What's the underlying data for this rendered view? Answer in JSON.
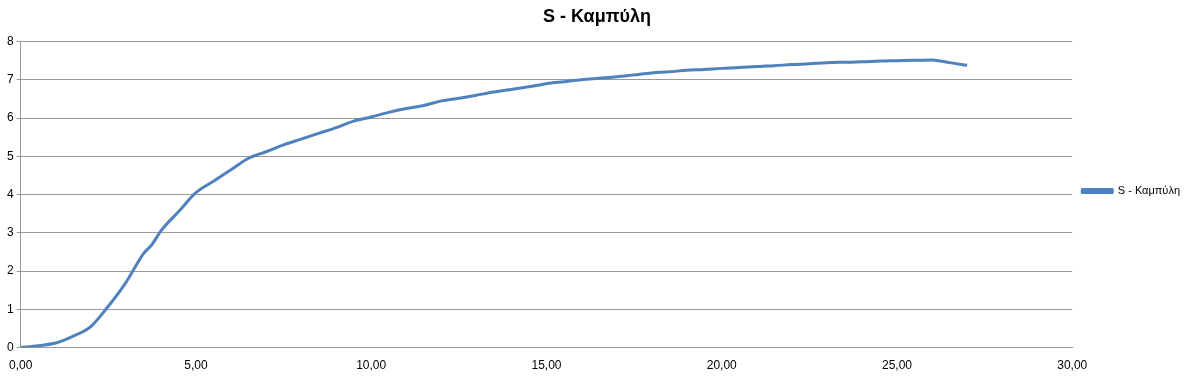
{
  "chart_data": {
    "type": "line",
    "title": "S - Καμπύλη",
    "x": [
      0,
      0.5,
      1,
      1.5,
      2,
      2.5,
      3,
      3.5,
      3.75,
      4,
      4.5,
      5,
      5.5,
      6,
      6.5,
      7,
      7.5,
      8,
      8.5,
      9,
      9.5,
      10,
      10.5,
      11,
      11.5,
      12,
      12.5,
      13,
      13.5,
      14,
      14.5,
      15,
      15.5,
      16,
      16.5,
      17,
      17.5,
      18,
      18.5,
      19,
      19.5,
      20,
      20.5,
      21,
      21.5,
      22,
      22.5,
      23,
      23.5,
      24,
      24.5,
      25,
      25.5,
      26,
      26.5,
      27
    ],
    "series": [
      {
        "name": "S - Καμπύλη",
        "color": "#4f81bd",
        "values": [
          0,
          0.05,
          0.12,
          0.3,
          0.55,
          1.08,
          1.7,
          2.45,
          2.7,
          3.05,
          3.55,
          4.05,
          4.35,
          4.65,
          4.95,
          5.12,
          5.3,
          5.45,
          5.6,
          5.75,
          5.92,
          6.03,
          6.15,
          6.25,
          6.33,
          6.45,
          6.52,
          6.6,
          6.68,
          6.75,
          6.82,
          6.9,
          6.95,
          7.0,
          7.04,
          7.08,
          7.13,
          7.18,
          7.21,
          7.25,
          7.27,
          7.3,
          7.32,
          7.35,
          7.37,
          7.4,
          7.42,
          7.45,
          7.46,
          7.47,
          7.49,
          7.5,
          7.51,
          7.52,
          7.45,
          7.38
        ]
      }
    ],
    "xlim": [
      0,
      30
    ],
    "xticks": [
      {
        "value": 0,
        "label": "0,00"
      },
      {
        "value": 5,
        "label": "5,00"
      },
      {
        "value": 10,
        "label": "10,00"
      },
      {
        "value": 15,
        "label": "15,00"
      },
      {
        "value": 20,
        "label": "20,00"
      },
      {
        "value": 25,
        "label": "25,00"
      },
      {
        "value": 30,
        "label": "30,00"
      }
    ],
    "ylim": [
      0,
      8
    ],
    "yticks": [
      0,
      1,
      2,
      3,
      4,
      5,
      6,
      7,
      8
    ],
    "grid": "y",
    "legend": "right",
    "marker": "none",
    "line_style": "solid"
  }
}
